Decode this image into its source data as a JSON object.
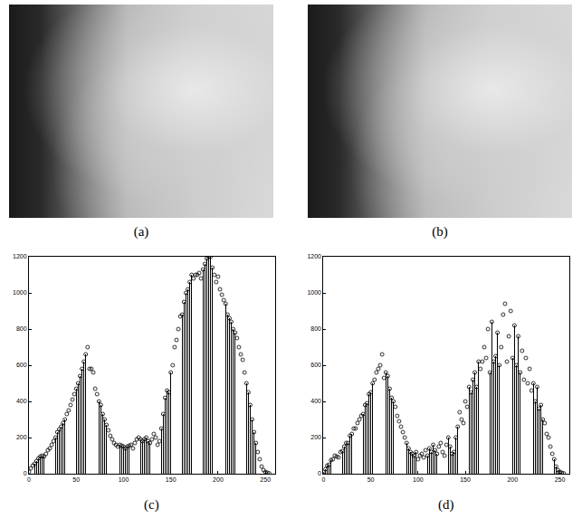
{
  "images": [
    {
      "label": "(a)"
    },
    {
      "label": "(b)"
    }
  ],
  "chart_data": [
    {
      "type": "stem",
      "label": "(c)",
      "color": "#000000",
      "marker": "circle-open",
      "x": [
        0,
        2,
        4,
        6,
        8,
        10,
        12,
        14,
        16,
        18,
        20,
        22,
        24,
        26,
        28,
        30,
        32,
        34,
        36,
        38,
        40,
        42,
        44,
        46,
        48,
        50,
        52,
        54,
        56,
        58,
        60,
        62,
        64,
        66,
        68,
        70,
        72,
        74,
        76,
        78,
        80,
        82,
        84,
        86,
        88,
        90,
        92,
        94,
        96,
        98,
        100,
        102,
        104,
        106,
        108,
        110,
        112,
        114,
        116,
        118,
        120,
        122,
        124,
        126,
        128,
        130,
        132,
        134,
        136,
        138,
        140,
        142,
        144,
        146,
        148,
        150,
        152,
        154,
        156,
        158,
        160,
        162,
        164,
        166,
        168,
        170,
        172,
        174,
        176,
        178,
        180,
        182,
        184,
        186,
        188,
        190,
        192,
        194,
        196,
        198,
        200,
        202,
        204,
        206,
        208,
        210,
        212,
        214,
        216,
        218,
        220,
        222,
        224,
        226,
        228,
        230,
        232,
        234,
        236,
        238,
        240,
        242,
        244,
        246,
        248,
        250,
        252,
        254
      ],
      "values": [
        10,
        30,
        45,
        55,
        70,
        85,
        95,
        100,
        95,
        110,
        130,
        140,
        160,
        180,
        200,
        230,
        245,
        260,
        280,
        300,
        330,
        350,
        380,
        410,
        440,
        470,
        500,
        540,
        580,
        620,
        660,
        700,
        580,
        580,
        560,
        470,
        440,
        400,
        380,
        330,
        300,
        270,
        240,
        210,
        190,
        170,
        160,
        150,
        160,
        155,
        150,
        140,
        150,
        155,
        160,
        140,
        170,
        190,
        200,
        190,
        180,
        190,
        200,
        180,
        170,
        190,
        220,
        200,
        160,
        180,
        250,
        330,
        420,
        460,
        450,
        560,
        600,
        700,
        740,
        800,
        870,
        880,
        950,
        1000,
        1020,
        1060,
        1100,
        1080,
        1100,
        1100,
        1110,
        1080,
        1130,
        1160,
        1190,
        1200,
        1200,
        1140,
        1100,
        1060,
        1090,
        1020,
        990,
        960,
        940,
        880,
        860,
        840,
        800,
        780,
        750,
        700,
        660,
        630,
        560,
        500,
        450,
        380,
        300,
        230,
        170,
        120,
        80,
        40,
        20,
        10,
        5,
        2
      ],
      "xlim": [
        0,
        260
      ],
      "xticks": [
        0,
        50,
        100,
        150,
        200,
        250
      ],
      "ylim": [
        0,
        1200
      ],
      "yticks": [
        0,
        200,
        400,
        600,
        800,
        1000,
        1200
      ]
    },
    {
      "type": "stem",
      "label": "(d)",
      "color": "#000000",
      "marker": "circle-open",
      "x": [
        0,
        2,
        4,
        6,
        8,
        10,
        12,
        14,
        16,
        18,
        20,
        22,
        24,
        26,
        28,
        30,
        32,
        34,
        36,
        38,
        40,
        42,
        44,
        46,
        48,
        50,
        52,
        54,
        56,
        58,
        60,
        62,
        64,
        66,
        68,
        70,
        72,
        74,
        76,
        78,
        80,
        82,
        84,
        86,
        88,
        90,
        92,
        94,
        96,
        98,
        100,
        102,
        104,
        106,
        108,
        110,
        112,
        114,
        116,
        118,
        120,
        122,
        124,
        126,
        128,
        130,
        132,
        134,
        136,
        138,
        140,
        142,
        144,
        146,
        148,
        150,
        152,
        154,
        156,
        158,
        160,
        162,
        164,
        166,
        168,
        170,
        172,
        174,
        176,
        178,
        180,
        182,
        184,
        186,
        188,
        190,
        192,
        194,
        196,
        198,
        200,
        202,
        204,
        206,
        208,
        210,
        212,
        214,
        216,
        218,
        220,
        222,
        224,
        226,
        228,
        230,
        232,
        234,
        236,
        238,
        240,
        242,
        244,
        246,
        248,
        250,
        252,
        254
      ],
      "values": [
        10,
        25,
        45,
        50,
        75,
        80,
        100,
        95,
        90,
        120,
        125,
        150,
        170,
        170,
        210,
        220,
        250,
        250,
        280,
        300,
        320,
        330,
        380,
        390,
        440,
        450,
        500,
        520,
        560,
        580,
        600,
        660,
        530,
        560,
        540,
        470,
        420,
        400,
        370,
        320,
        290,
        260,
        230,
        200,
        170,
        140,
        120,
        110,
        100,
        120,
        80,
        100,
        110,
        90,
        130,
        100,
        140,
        120,
        160,
        130,
        110,
        150,
        170,
        120,
        100,
        160,
        200,
        150,
        110,
        120,
        200,
        260,
        340,
        300,
        280,
        400,
        370,
        480,
        450,
        520,
        560,
        480,
        620,
        580,
        620,
        700,
        640,
        800,
        560,
        840,
        620,
        650,
        780,
        600,
        700,
        880,
        940,
        620,
        760,
        900,
        640,
        820,
        600,
        760,
        560,
        680,
        520,
        640,
        500,
        580,
        460,
        500,
        400,
        480,
        360,
        380,
        300,
        280,
        220,
        200,
        150,
        110,
        80,
        40,
        20,
        10,
        5,
        2
      ],
      "xlim": [
        0,
        260
      ],
      "xticks": [
        0,
        50,
        100,
        150,
        200,
        250
      ],
      "ylim": [
        0,
        1200
      ],
      "yticks": [
        0,
        200,
        400,
        600,
        800,
        1000,
        1200
      ]
    }
  ]
}
